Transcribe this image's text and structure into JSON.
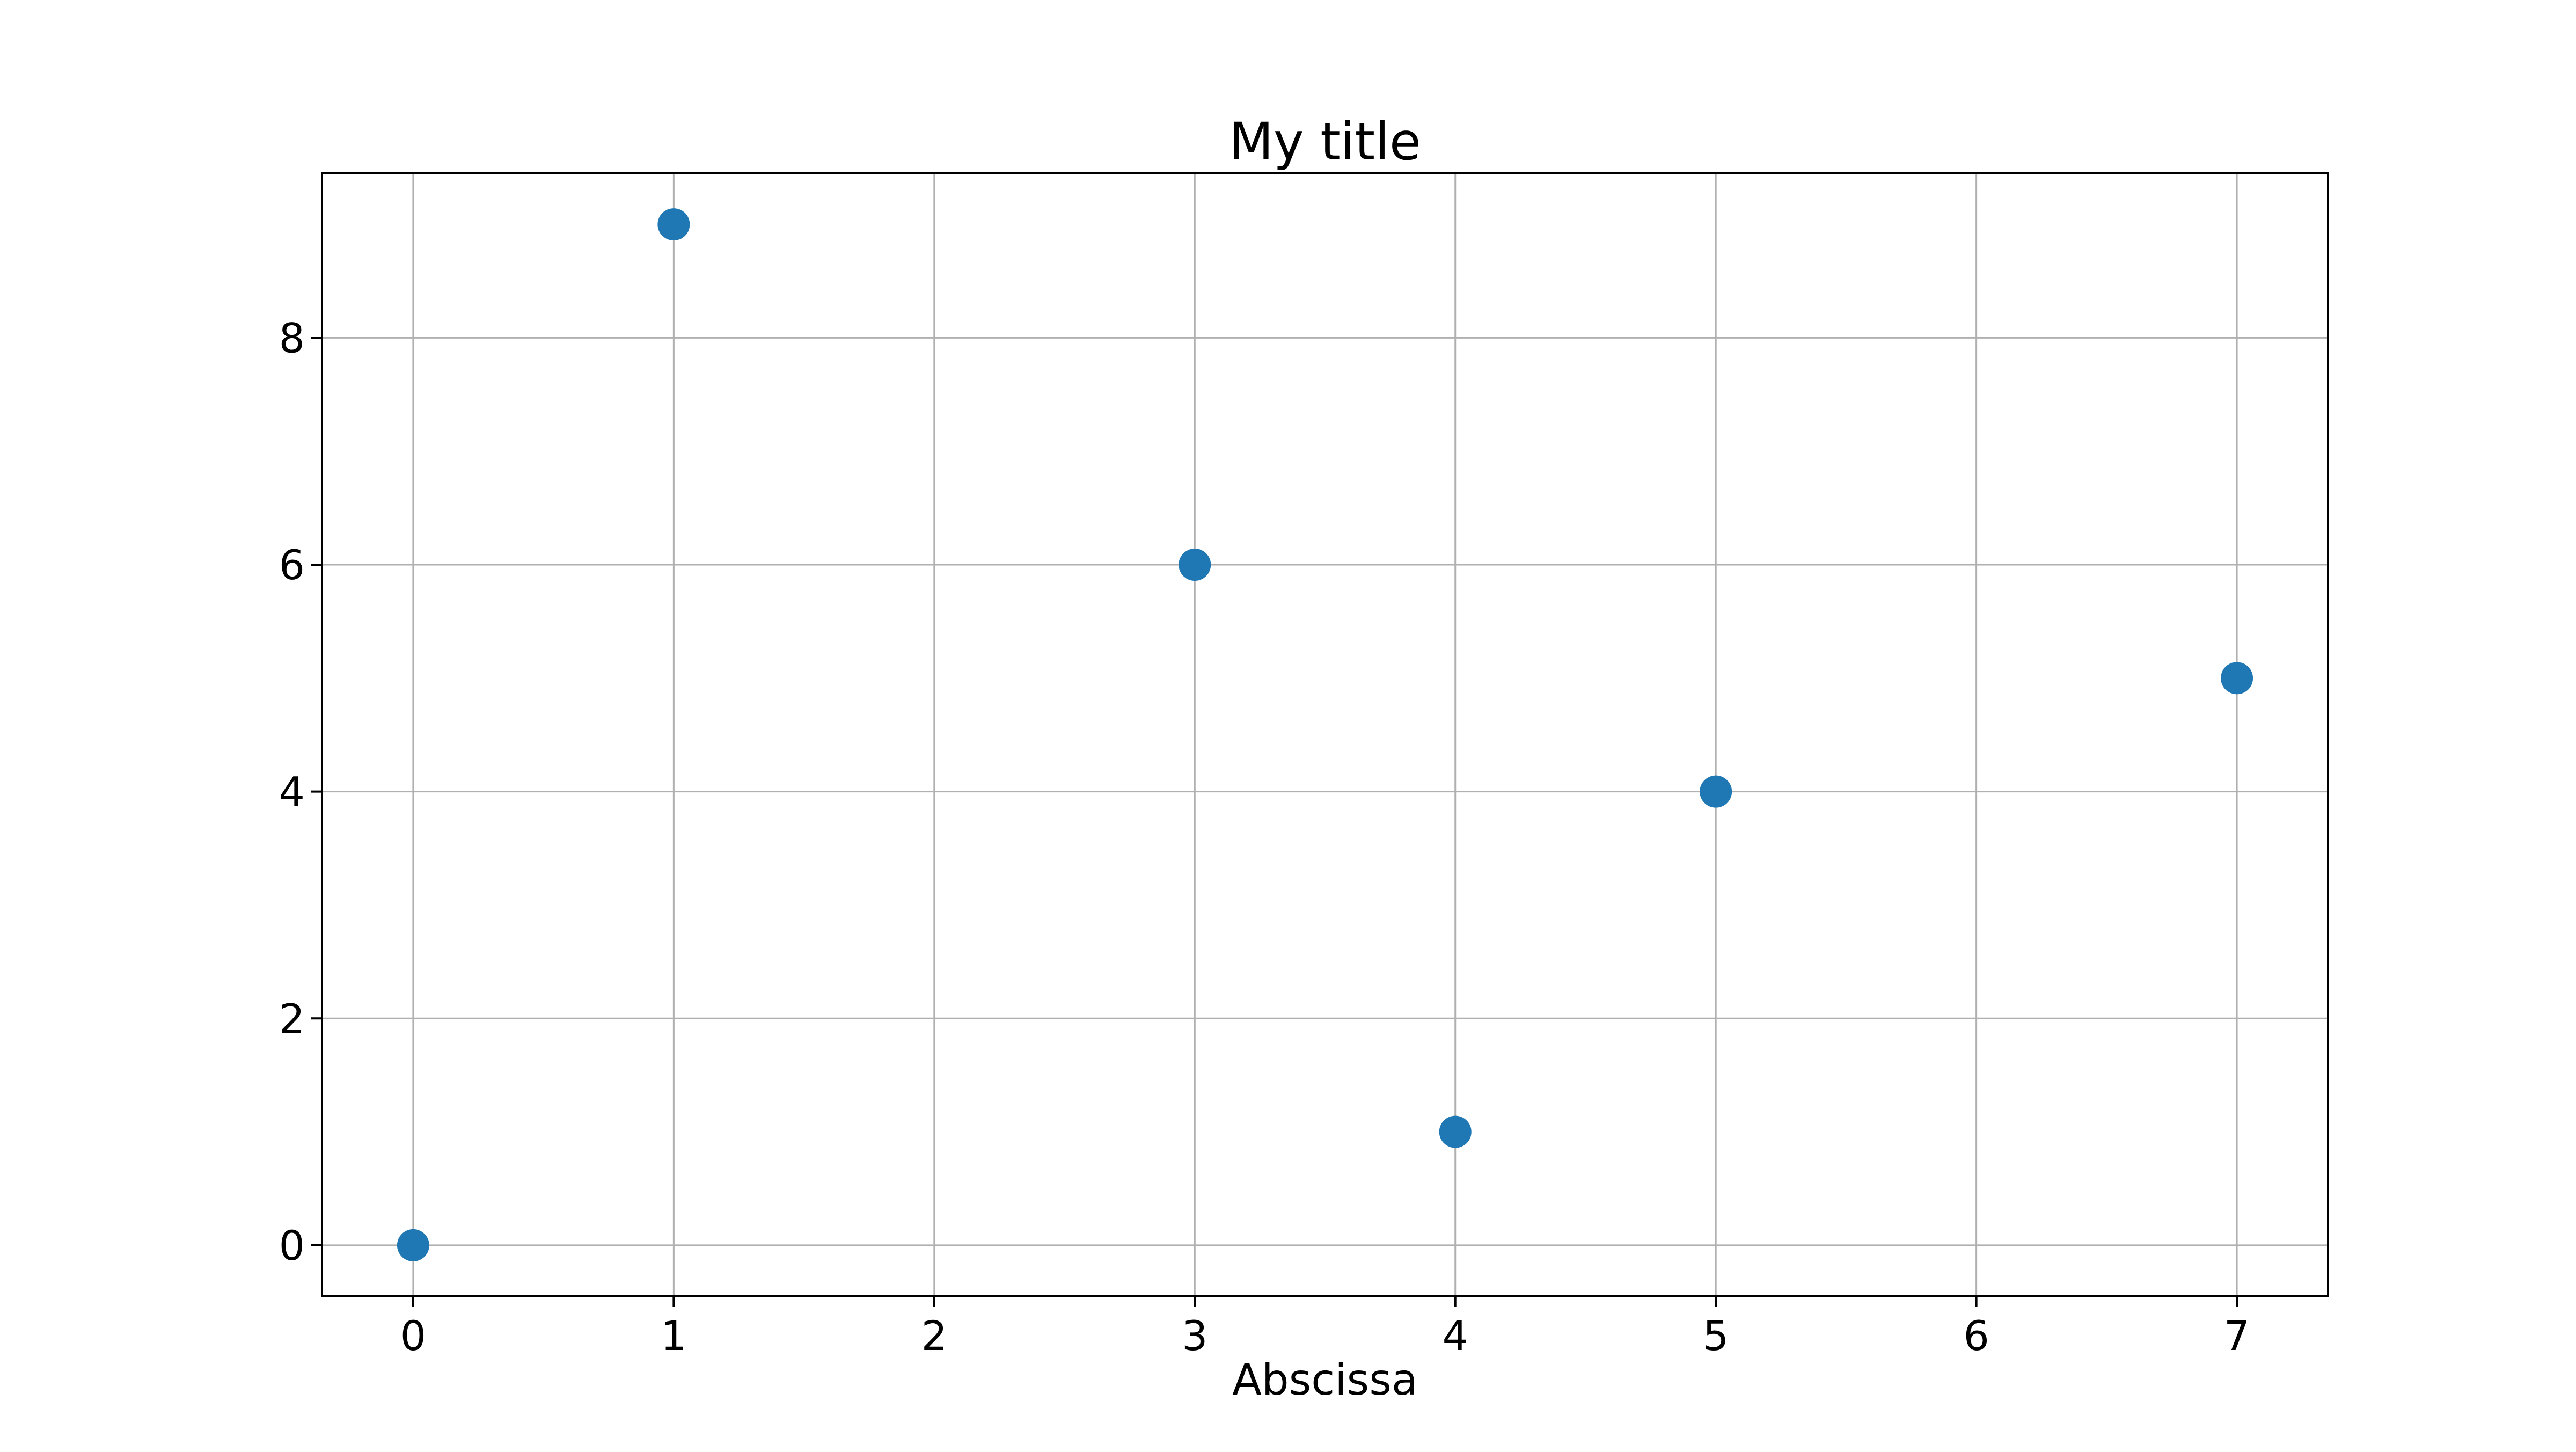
{
  "chart_data": {
    "type": "scatter",
    "title": "My title",
    "xlabel": "Abscissa",
    "ylabel": "",
    "x": [
      0,
      1,
      3,
      4,
      5,
      7
    ],
    "y": [
      0,
      9,
      6,
      1,
      4,
      5
    ],
    "xlim": [
      -0.35,
      7.35
    ],
    "ylim": [
      -0.45,
      9.45
    ],
    "xticks": [
      0,
      1,
      2,
      3,
      4,
      5,
      6,
      7
    ],
    "yticks": [
      0,
      2,
      4,
      6,
      8
    ],
    "grid": true,
    "legend": "none",
    "marker_color": "#1f77b4",
    "grid_color": "#b0b0b0",
    "axes_color": "#000000"
  }
}
